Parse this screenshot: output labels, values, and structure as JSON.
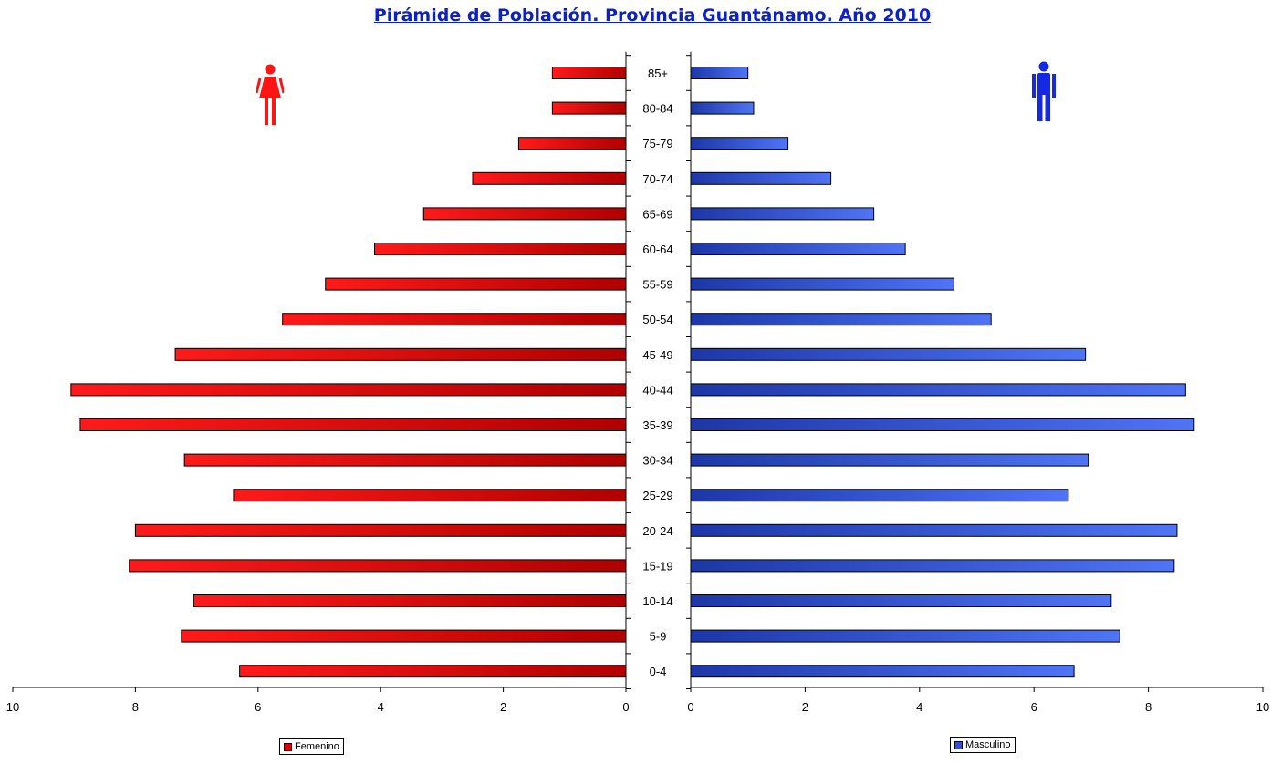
{
  "chart_data": {
    "type": "bar",
    "title": "Pirámide de Población. Provincia Guantánamo. Año 2010",
    "categories": [
      "85+",
      "80-84",
      "75-79",
      "70-74",
      "65-69",
      "60-64",
      "55-59",
      "50-54",
      "45-49",
      "40-44",
      "35-39",
      "30-34",
      "25-29",
      "20-24",
      "15-19",
      "10-14",
      "5-9",
      "0-4"
    ],
    "series": [
      {
        "name": "Femenino",
        "values": [
          1.2,
          1.2,
          1.75,
          2.5,
          3.3,
          4.1,
          4.9,
          5.6,
          7.35,
          9.05,
          8.9,
          7.2,
          6.4,
          8.0,
          8.1,
          7.05,
          7.25,
          6.3
        ]
      },
      {
        "name": "Masculino",
        "values": [
          1.0,
          1.1,
          1.7,
          2.45,
          3.2,
          3.75,
          4.6,
          5.25,
          6.9,
          8.65,
          8.8,
          6.95,
          6.6,
          8.5,
          8.45,
          7.35,
          7.5,
          6.7
        ]
      }
    ],
    "xlim": [
      0,
      10
    ],
    "ticks": [
      "0",
      "2",
      "4",
      "6",
      "8",
      "10"
    ],
    "grid": false,
    "legend": "bottom"
  },
  "colors": {
    "female": "#ff1414",
    "female_dark": "#a00000",
    "male": "#4a6cf0",
    "male_dark": "#1d37a8",
    "title": "#0b20c8"
  },
  "icons": {
    "female": "woman-icon",
    "male": "man-icon"
  }
}
